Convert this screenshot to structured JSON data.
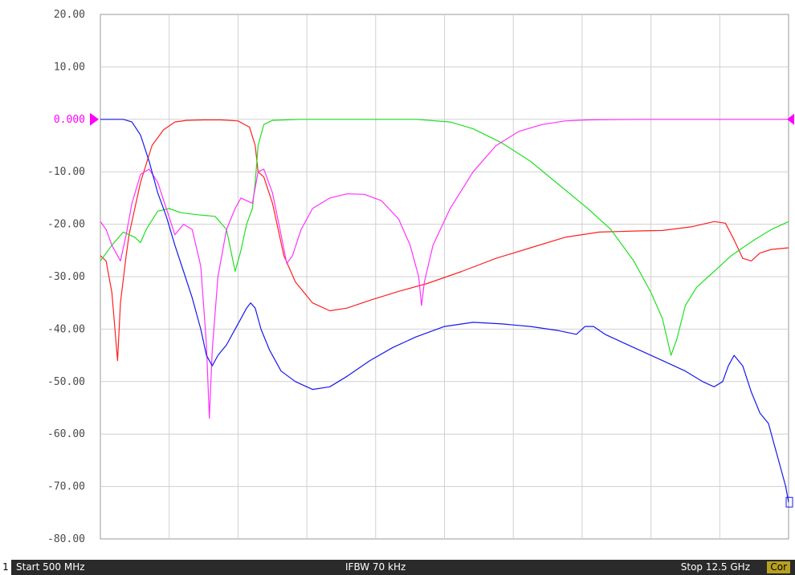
{
  "chart_data": {
    "type": "line",
    "y_ticks": [
      "20.00",
      "10.00",
      "0.000",
      "-10.00",
      "-20.00",
      "-30.00",
      "-40.00",
      "-50.00",
      "-60.00",
      "-70.00",
      "-80.00"
    ],
    "ylim": [
      -80,
      20
    ],
    "xlim": [
      0.5,
      12.5
    ],
    "x_unit": "GHz",
    "grid": true,
    "reference_level": 0,
    "series": [
      {
        "color": "#ff2020",
        "points": [
          [
            0.5,
            -26
          ],
          [
            0.6,
            -27
          ],
          [
            0.7,
            -33
          ],
          [
            0.8,
            -46
          ],
          [
            0.85,
            -35
          ],
          [
            0.95,
            -26
          ],
          [
            1.0,
            -22
          ],
          [
            1.2,
            -12
          ],
          [
            1.4,
            -5
          ],
          [
            1.6,
            -2
          ],
          [
            1.8,
            -0.5
          ],
          [
            2.0,
            -0.2
          ],
          [
            2.3,
            -0.1
          ],
          [
            2.6,
            -0.1
          ],
          [
            2.9,
            -0.3
          ],
          [
            3.1,
            -1.5
          ],
          [
            3.2,
            -5
          ],
          [
            3.25,
            -10
          ],
          [
            3.35,
            -11
          ],
          [
            3.5,
            -16
          ],
          [
            3.7,
            -26
          ],
          [
            3.9,
            -31
          ],
          [
            4.2,
            -35
          ],
          [
            4.5,
            -36.5
          ],
          [
            4.8,
            -36
          ],
          [
            5.2,
            -34.5
          ],
          [
            5.7,
            -32.8
          ],
          [
            6.2,
            -31.3
          ],
          [
            6.8,
            -29
          ],
          [
            7.4,
            -26.5
          ],
          [
            8.0,
            -24.5
          ],
          [
            8.6,
            -22.5
          ],
          [
            9.2,
            -21.5
          ],
          [
            9.8,
            -21.3
          ],
          [
            10.3,
            -21.2
          ],
          [
            10.8,
            -20.5
          ],
          [
            11.2,
            -19.5
          ],
          [
            11.4,
            -19.8
          ],
          [
            11.55,
            -23
          ],
          [
            11.7,
            -26.5
          ],
          [
            11.85,
            -27
          ],
          [
            12.0,
            -25.5
          ],
          [
            12.2,
            -24.8
          ],
          [
            12.5,
            -24.5
          ]
        ]
      },
      {
        "color": "#20e020",
        "points": [
          [
            0.5,
            -27
          ],
          [
            0.7,
            -24
          ],
          [
            0.9,
            -21.5
          ],
          [
            1.1,
            -22.5
          ],
          [
            1.2,
            -23.5
          ],
          [
            1.3,
            -21
          ],
          [
            1.5,
            -17.5
          ],
          [
            1.7,
            -17
          ],
          [
            1.9,
            -17.8
          ],
          [
            2.2,
            -18.2
          ],
          [
            2.5,
            -18.5
          ],
          [
            2.7,
            -21
          ],
          [
            2.85,
            -29
          ],
          [
            2.95,
            -25
          ],
          [
            3.05,
            -20
          ],
          [
            3.15,
            -17
          ],
          [
            3.2,
            -12
          ],
          [
            3.25,
            -5
          ],
          [
            3.35,
            -1
          ],
          [
            3.5,
            -0.2
          ],
          [
            4.0,
            0
          ],
          [
            5.0,
            0
          ],
          [
            6.0,
            0
          ],
          [
            6.6,
            -0.5
          ],
          [
            7.0,
            -1.8
          ],
          [
            7.5,
            -4.5
          ],
          [
            8.0,
            -8
          ],
          [
            8.5,
            -12.5
          ],
          [
            9.0,
            -17
          ],
          [
            9.4,
            -21
          ],
          [
            9.8,
            -27
          ],
          [
            10.1,
            -33
          ],
          [
            10.3,
            -38
          ],
          [
            10.45,
            -45
          ],
          [
            10.55,
            -42
          ],
          [
            10.7,
            -35.5
          ],
          [
            10.9,
            -32
          ],
          [
            11.2,
            -29
          ],
          [
            11.5,
            -26
          ],
          [
            11.9,
            -23
          ],
          [
            12.2,
            -21
          ],
          [
            12.5,
            -19.5
          ]
        ]
      },
      {
        "color": "#ff30ff",
        "points": [
          [
            0.5,
            -19.5
          ],
          [
            0.6,
            -21
          ],
          [
            0.7,
            -24
          ],
          [
            0.85,
            -27
          ],
          [
            0.95,
            -22
          ],
          [
            1.05,
            -16
          ],
          [
            1.2,
            -10.5
          ],
          [
            1.35,
            -9.5
          ],
          [
            1.5,
            -12
          ],
          [
            1.65,
            -17
          ],
          [
            1.8,
            -22
          ],
          [
            1.95,
            -20
          ],
          [
            2.1,
            -21
          ],
          [
            2.25,
            -28
          ],
          [
            2.35,
            -43
          ],
          [
            2.4,
            -57
          ],
          [
            2.45,
            -44
          ],
          [
            2.55,
            -30
          ],
          [
            2.7,
            -21
          ],
          [
            2.85,
            -17
          ],
          [
            2.95,
            -15
          ],
          [
            3.05,
            -15.5
          ],
          [
            3.15,
            -16
          ],
          [
            3.25,
            -10
          ],
          [
            3.35,
            -9.5
          ],
          [
            3.5,
            -14
          ],
          [
            3.65,
            -22
          ],
          [
            3.75,
            -27.5
          ],
          [
            3.85,
            -26
          ],
          [
            4.0,
            -21
          ],
          [
            4.2,
            -17
          ],
          [
            4.5,
            -15
          ],
          [
            4.8,
            -14.2
          ],
          [
            5.1,
            -14.3
          ],
          [
            5.4,
            -15.5
          ],
          [
            5.7,
            -19
          ],
          [
            5.9,
            -24
          ],
          [
            6.05,
            -30
          ],
          [
            6.1,
            -35.5
          ],
          [
            6.15,
            -31
          ],
          [
            6.3,
            -24
          ],
          [
            6.6,
            -17
          ],
          [
            7.0,
            -10
          ],
          [
            7.4,
            -5
          ],
          [
            7.8,
            -2.3
          ],
          [
            8.2,
            -1
          ],
          [
            8.6,
            -0.3
          ],
          [
            9.0,
            -0.1
          ],
          [
            10.0,
            0
          ],
          [
            11.0,
            0
          ],
          [
            12.5,
            0
          ]
        ]
      },
      {
        "color": "#1818f0",
        "points": [
          [
            0.5,
            0
          ],
          [
            0.9,
            0
          ],
          [
            1.05,
            -0.5
          ],
          [
            1.2,
            -3
          ],
          [
            1.35,
            -8
          ],
          [
            1.5,
            -14
          ],
          [
            1.65,
            -18.5
          ],
          [
            1.8,
            -24
          ],
          [
            1.95,
            -29
          ],
          [
            2.1,
            -34
          ],
          [
            2.25,
            -40
          ],
          [
            2.35,
            -45
          ],
          [
            2.45,
            -47
          ],
          [
            2.55,
            -45
          ],
          [
            2.7,
            -43
          ],
          [
            2.85,
            -40
          ],
          [
            2.95,
            -38
          ],
          [
            3.05,
            -36
          ],
          [
            3.12,
            -35
          ],
          [
            3.2,
            -36
          ],
          [
            3.3,
            -40
          ],
          [
            3.45,
            -44
          ],
          [
            3.65,
            -48
          ],
          [
            3.9,
            -50
          ],
          [
            4.2,
            -51.5
          ],
          [
            4.5,
            -51
          ],
          [
            4.8,
            -49
          ],
          [
            5.2,
            -46
          ],
          [
            5.6,
            -43.5
          ],
          [
            6.0,
            -41.5
          ],
          [
            6.5,
            -39.5
          ],
          [
            7.0,
            -38.7
          ],
          [
            7.5,
            -39
          ],
          [
            8.0,
            -39.5
          ],
          [
            8.5,
            -40.3
          ],
          [
            8.8,
            -41
          ],
          [
            8.95,
            -39.5
          ],
          [
            9.1,
            -39.5
          ],
          [
            9.3,
            -41
          ],
          [
            9.6,
            -42.5
          ],
          [
            9.9,
            -44
          ],
          [
            10.3,
            -46
          ],
          [
            10.7,
            -48
          ],
          [
            11.0,
            -50
          ],
          [
            11.2,
            -51
          ],
          [
            11.35,
            -50
          ],
          [
            11.45,
            -47
          ],
          [
            11.55,
            -45
          ],
          [
            11.7,
            -47
          ],
          [
            11.85,
            -52
          ],
          [
            12.0,
            -56
          ],
          [
            12.15,
            -58
          ],
          [
            12.25,
            -62
          ],
          [
            12.35,
            -66
          ],
          [
            12.45,
            -70
          ],
          [
            12.5,
            -73
          ]
        ]
      }
    ]
  },
  "status_bar": {
    "channel": "1",
    "start": "Start 500 MHz",
    "ifbw": "IFBW 70 kHz",
    "stop": "Stop 12.5 GHz",
    "cor": "Cor"
  },
  "colors": {
    "reference_marker": "#ff00ff",
    "end_marker": "#1818f0",
    "grid": "#d0d0d0",
    "status_bar": "#2a2a2a"
  }
}
